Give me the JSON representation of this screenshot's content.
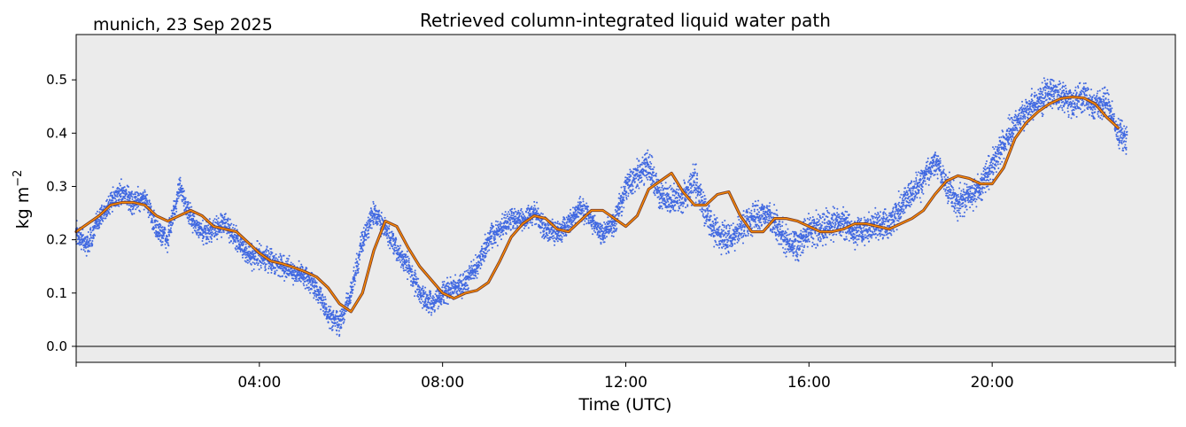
{
  "chart_data": {
    "type": "line",
    "title": "Retrieved column-integrated liquid water path",
    "subtitle": "munich, 23 Sep 2025",
    "xlabel": "Time (UTC)",
    "ylabel": "kg m",
    "ylabel_superscript": "−2",
    "x_unit": "hours UTC",
    "xlim": [
      0,
      24
    ],
    "ylim": [
      -0.03,
      0.585
    ],
    "x_ticks": [
      {
        "value": 4,
        "label": "04:00"
      },
      {
        "value": 8,
        "label": "08:00"
      },
      {
        "value": 12,
        "label": "12:00"
      },
      {
        "value": 16,
        "label": "16:00"
      },
      {
        "value": 20,
        "label": "20:00"
      }
    ],
    "y_ticks": [
      {
        "value": 0.0,
        "label": "0.0"
      },
      {
        "value": 0.1,
        "label": "0.1"
      },
      {
        "value": 0.2,
        "label": "0.2"
      },
      {
        "value": 0.3,
        "label": "0.3"
      },
      {
        "value": 0.4,
        "label": "0.4"
      },
      {
        "value": 0.5,
        "label": "0.5"
      }
    ],
    "zero_line": true,
    "grid": false,
    "background": "#ebebeb",
    "series": [
      {
        "style": "scatter-band",
        "color": "#4169e1",
        "x": [
          0.0,
          0.25,
          0.5,
          0.75,
          1.0,
          1.25,
          1.5,
          1.75,
          2.0,
          2.1,
          2.25,
          2.5,
          2.75,
          3.0,
          3.25,
          3.5,
          3.75,
          4.0,
          4.25,
          4.5,
          4.75,
          5.0,
          5.25,
          5.5,
          5.75,
          6.0,
          6.25,
          6.5,
          6.75,
          7.0,
          7.25,
          7.5,
          7.75,
          8.0,
          8.25,
          8.5,
          8.75,
          9.0,
          9.25,
          9.5,
          9.75,
          10.0,
          10.25,
          10.5,
          10.75,
          11.0,
          11.25,
          11.5,
          11.75,
          12.0,
          12.25,
          12.5,
          12.75,
          13.0,
          13.25,
          13.5,
          13.75,
          14.0,
          14.25,
          14.5,
          14.75,
          15.0,
          15.25,
          15.5,
          15.75,
          16.0,
          16.25,
          16.5,
          16.75,
          17.0,
          17.25,
          17.5,
          17.75,
          18.0,
          18.25,
          18.5,
          18.75,
          19.0,
          19.25,
          19.5,
          19.75,
          20.0,
          20.25,
          20.5,
          20.75,
          21.0,
          21.25,
          21.5,
          21.75,
          22.0,
          22.25,
          22.5,
          22.75,
          22.95
        ],
        "y": [
          0.21,
          0.19,
          0.24,
          0.27,
          0.29,
          0.27,
          0.28,
          0.22,
          0.2,
          0.24,
          0.3,
          0.24,
          0.21,
          0.22,
          0.23,
          0.2,
          0.17,
          0.17,
          0.16,
          0.15,
          0.14,
          0.13,
          0.11,
          0.06,
          0.04,
          0.1,
          0.2,
          0.25,
          0.22,
          0.18,
          0.15,
          0.1,
          0.08,
          0.1,
          0.11,
          0.12,
          0.15,
          0.2,
          0.22,
          0.24,
          0.24,
          0.25,
          0.22,
          0.21,
          0.23,
          0.26,
          0.24,
          0.21,
          0.23,
          0.3,
          0.32,
          0.34,
          0.28,
          0.27,
          0.28,
          0.31,
          0.25,
          0.21,
          0.2,
          0.22,
          0.24,
          0.25,
          0.23,
          0.2,
          0.19,
          0.22,
          0.22,
          0.23,
          0.23,
          0.21,
          0.22,
          0.23,
          0.23,
          0.26,
          0.29,
          0.31,
          0.35,
          0.3,
          0.27,
          0.28,
          0.3,
          0.34,
          0.38,
          0.42,
          0.44,
          0.46,
          0.48,
          0.47,
          0.46,
          0.47,
          0.45,
          0.46,
          0.4,
          0.39
        ],
        "spread": [
          0.03,
          0.03,
          0.03,
          0.03,
          0.03,
          0.03,
          0.03,
          0.03,
          0.03,
          0.03,
          0.03,
          0.03,
          0.03,
          0.03,
          0.03,
          0.03,
          0.03,
          0.03,
          0.03,
          0.03,
          0.03,
          0.03,
          0.03,
          0.03,
          0.03,
          0.03,
          0.03,
          0.03,
          0.03,
          0.03,
          0.03,
          0.03,
          0.03,
          0.03,
          0.03,
          0.03,
          0.03,
          0.03,
          0.03,
          0.03,
          0.03,
          0.03,
          0.03,
          0.03,
          0.03,
          0.03,
          0.03,
          0.03,
          0.03,
          0.04,
          0.04,
          0.04,
          0.04,
          0.04,
          0.04,
          0.05,
          0.04,
          0.04,
          0.04,
          0.04,
          0.04,
          0.04,
          0.04,
          0.04,
          0.04,
          0.04,
          0.04,
          0.04,
          0.04,
          0.04,
          0.04,
          0.04,
          0.04,
          0.04,
          0.04,
          0.04,
          0.04,
          0.04,
          0.04,
          0.04,
          0.04,
          0.04,
          0.04,
          0.04,
          0.04,
          0.04,
          0.04,
          0.04,
          0.04,
          0.04,
          0.04,
          0.04,
          0.04,
          0.04
        ]
      },
      {
        "style": "line",
        "color": "#ff8c00",
        "edge_color": "#7a3e2a",
        "x": [
          0.0,
          0.5,
          0.75,
          1.0,
          1.25,
          1.5,
          1.75,
          2.0,
          2.25,
          2.5,
          2.75,
          3.0,
          3.25,
          3.5,
          3.75,
          4.0,
          4.25,
          4.5,
          4.75,
          5.0,
          5.25,
          5.5,
          5.75,
          6.0,
          6.25,
          6.5,
          6.75,
          7.0,
          7.25,
          7.5,
          7.75,
          8.0,
          8.25,
          8.5,
          8.75,
          9.0,
          9.25,
          9.5,
          9.75,
          10.0,
          10.25,
          10.5,
          10.75,
          11.0,
          11.25,
          11.5,
          11.75,
          12.0,
          12.25,
          12.5,
          12.75,
          13.0,
          13.25,
          13.5,
          13.75,
          14.0,
          14.25,
          14.5,
          14.75,
          15.0,
          15.25,
          15.5,
          15.75,
          16.0,
          16.25,
          16.5,
          16.75,
          17.0,
          17.25,
          17.5,
          17.75,
          18.0,
          18.25,
          18.5,
          18.75,
          19.0,
          19.25,
          19.5,
          19.75,
          20.0,
          20.25,
          20.5,
          20.75,
          21.0,
          21.25,
          21.5,
          21.75,
          22.0,
          22.25,
          22.5,
          22.75
        ],
        "y": [
          0.215,
          0.245,
          0.265,
          0.27,
          0.27,
          0.265,
          0.245,
          0.235,
          0.245,
          0.255,
          0.245,
          0.225,
          0.22,
          0.215,
          0.195,
          0.175,
          0.16,
          0.155,
          0.148,
          0.14,
          0.13,
          0.11,
          0.08,
          0.065,
          0.1,
          0.18,
          0.235,
          0.225,
          0.185,
          0.15,
          0.125,
          0.1,
          0.09,
          0.1,
          0.105,
          0.12,
          0.16,
          0.205,
          0.23,
          0.245,
          0.24,
          0.22,
          0.215,
          0.235,
          0.255,
          0.255,
          0.24,
          0.225,
          0.245,
          0.295,
          0.31,
          0.325,
          0.29,
          0.265,
          0.265,
          0.285,
          0.29,
          0.245,
          0.215,
          0.215,
          0.24,
          0.24,
          0.235,
          0.225,
          0.215,
          0.215,
          0.22,
          0.23,
          0.23,
          0.225,
          0.22,
          0.23,
          0.24,
          0.255,
          0.285,
          0.31,
          0.32,
          0.315,
          0.305,
          0.305,
          0.335,
          0.39,
          0.42,
          0.44,
          0.455,
          0.465,
          0.468,
          0.466,
          0.455,
          0.43,
          0.41
        ]
      }
    ]
  }
}
